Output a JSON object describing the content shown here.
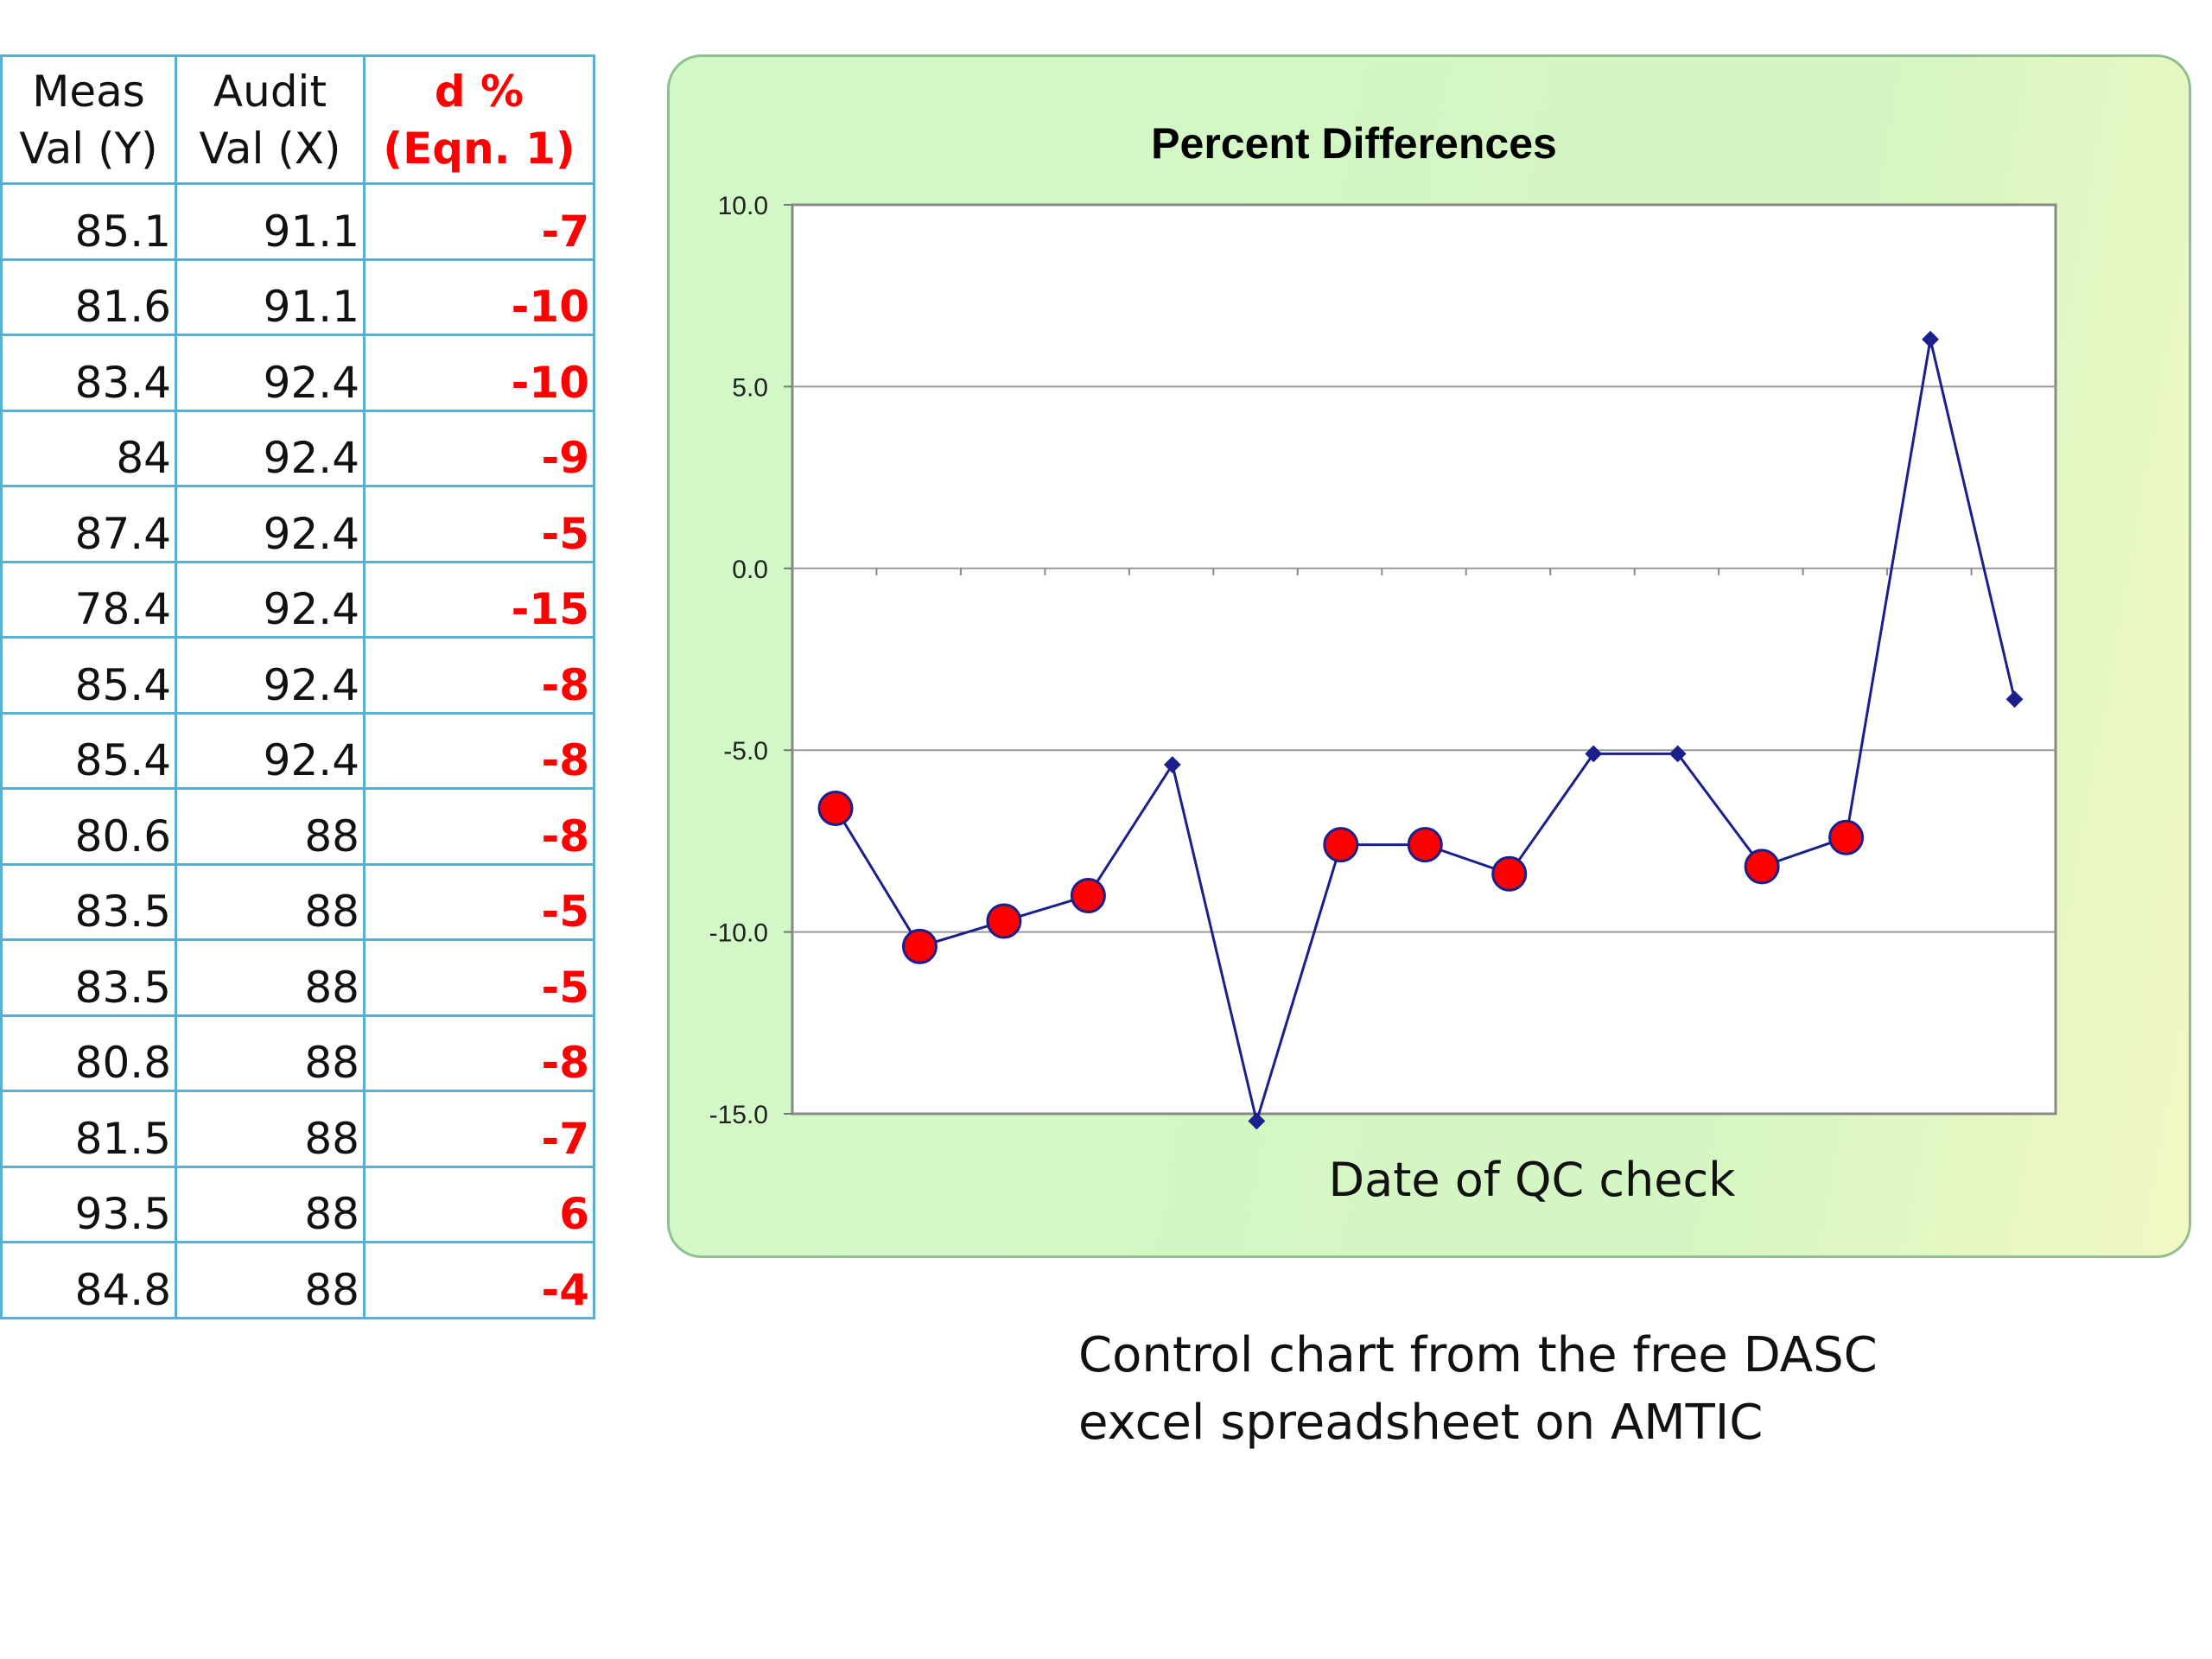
{
  "table": {
    "headers": [
      "Meas Val (Y)",
      "Audit Val (X)",
      "d % (Eqn. 1)"
    ],
    "rows": [
      [
        "85.1",
        "91.1",
        "-7"
      ],
      [
        "81.6",
        "91.1",
        "-10"
      ],
      [
        "83.4",
        "92.4",
        "-10"
      ],
      [
        "84",
        "92.4",
        "-9"
      ],
      [
        "87.4",
        "92.4",
        "-5"
      ],
      [
        "78.4",
        "92.4",
        "-15"
      ],
      [
        "85.4",
        "92.4",
        "-8"
      ],
      [
        "85.4",
        "92.4",
        "-8"
      ],
      [
        "80.6",
        "88",
        "-8"
      ],
      [
        "83.5",
        "88",
        "-5"
      ],
      [
        "83.5",
        "88",
        "-5"
      ],
      [
        "80.8",
        "88",
        "-8"
      ],
      [
        "81.5",
        "88",
        "-7"
      ],
      [
        "93.5",
        "88",
        "6"
      ],
      [
        "84.8",
        "88",
        "-4"
      ]
    ]
  },
  "chart_data": {
    "type": "line",
    "title": "Percent Differences",
    "xlabel": "Date of QC check",
    "ylabel": "",
    "ylim": [
      -15,
      10
    ],
    "yticks": [
      "10.0",
      "5.0",
      "0.0",
      "-5.0",
      "-10.0",
      "-15.0"
    ],
    "grid": true,
    "series": [
      {
        "values": [
          -6.6,
          -10.4,
          -9.7,
          -9.0,
          -5.4,
          -15.2,
          -7.6,
          -7.6,
          -8.4,
          -5.1,
          -5.1,
          -8.2,
          -7.4,
          6.3,
          -3.6
        ],
        "highlighted": [
          true,
          true,
          true,
          true,
          false,
          false,
          true,
          true,
          true,
          false,
          false,
          true,
          true,
          false,
          false
        ],
        "line_color": "#1a1f8c",
        "marker_color": "#ff0000"
      }
    ]
  },
  "caption": {
    "line1": "Control chart from the free DASC",
    "line2": "excel spreadsheet on AMTIC"
  }
}
